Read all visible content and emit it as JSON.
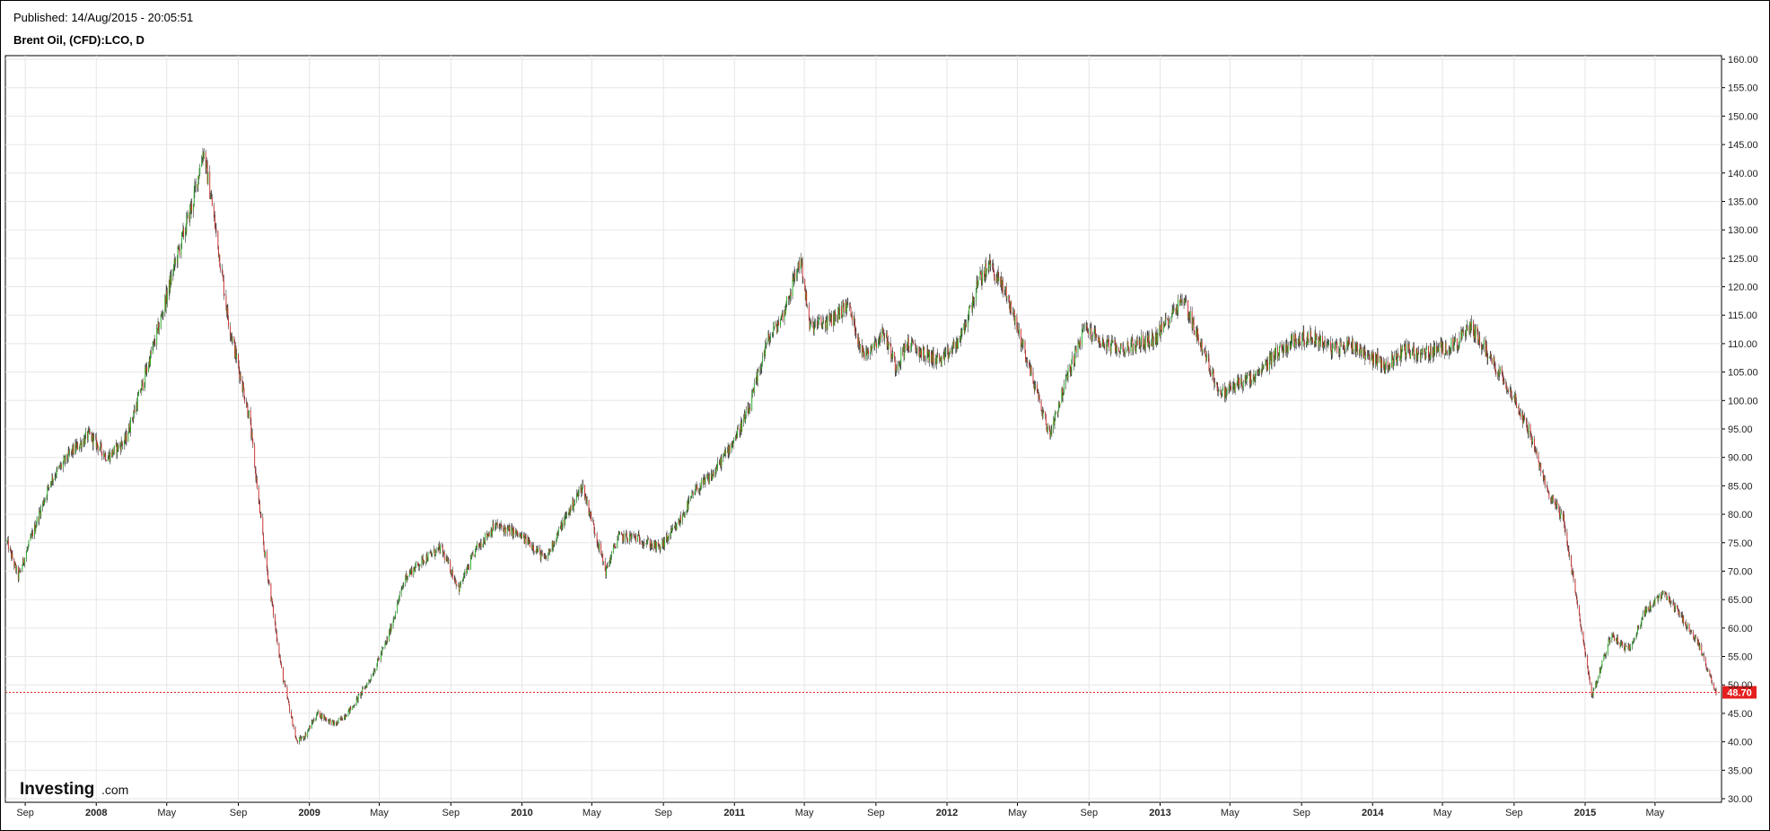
{
  "header": {
    "published": "Published: 14/Aug/2015 - 20:05:51",
    "title": "Brent Oil, (CFD):LCO, D"
  },
  "branding": {
    "logo_main": "Investing",
    "logo_suffix": ".com"
  },
  "colors": {
    "up": "#22b322",
    "down": "#d22a2a",
    "wick": "#333333",
    "grid": "#e6e6e6",
    "last_price": "#e51e1e"
  },
  "chart_data": {
    "type": "candlestick",
    "title": "Brent Oil, (CFD):LCO, D",
    "ylim": [
      30,
      160
    ],
    "y_ticks": [
      30,
      35,
      40,
      45,
      50,
      55,
      60,
      65,
      70,
      75,
      80,
      85,
      90,
      95,
      100,
      105,
      110,
      115,
      120,
      125,
      130,
      135,
      140,
      145,
      150,
      155,
      160
    ],
    "y_tick_labels": [
      "30.00",
      "35.00",
      "40.00",
      "45.00",
      "50.00",
      "55.00",
      "60.00",
      "65.00",
      "70.00",
      "75.00",
      "80.00",
      "85.00",
      "90.00",
      "95.00",
      "100.00",
      "105.00",
      "110.00",
      "115.00",
      "120.00",
      "125.00",
      "130.00",
      "135.00",
      "140.00",
      "145.00",
      "150.00",
      "155.00",
      "160.00"
    ],
    "x_range": [
      "2007-08-01",
      "2015-08-14"
    ],
    "x_ticks": [
      {
        "date": "2007-09-01",
        "label": "Sep",
        "bold": false
      },
      {
        "date": "2008-01-01",
        "label": "2008",
        "bold": true
      },
      {
        "date": "2008-05-01",
        "label": "May",
        "bold": false
      },
      {
        "date": "2008-09-01",
        "label": "Sep",
        "bold": false
      },
      {
        "date": "2009-01-01",
        "label": "2009",
        "bold": true
      },
      {
        "date": "2009-05-01",
        "label": "May",
        "bold": false
      },
      {
        "date": "2009-09-01",
        "label": "Sep",
        "bold": false
      },
      {
        "date": "2010-01-01",
        "label": "2010",
        "bold": true
      },
      {
        "date": "2010-05-01",
        "label": "May",
        "bold": false
      },
      {
        "date": "2010-09-01",
        "label": "Sep",
        "bold": false
      },
      {
        "date": "2011-01-01",
        "label": "2011",
        "bold": true
      },
      {
        "date": "2011-05-01",
        "label": "May",
        "bold": false
      },
      {
        "date": "2011-09-01",
        "label": "Sep",
        "bold": false
      },
      {
        "date": "2012-01-01",
        "label": "2012",
        "bold": true
      },
      {
        "date": "2012-05-01",
        "label": "May",
        "bold": false
      },
      {
        "date": "2012-09-01",
        "label": "Sep",
        "bold": false
      },
      {
        "date": "2013-01-01",
        "label": "2013",
        "bold": true
      },
      {
        "date": "2013-05-01",
        "label": "May",
        "bold": false
      },
      {
        "date": "2013-09-01",
        "label": "Sep",
        "bold": false
      },
      {
        "date": "2014-01-01",
        "label": "2014",
        "bold": true
      },
      {
        "date": "2014-05-01",
        "label": "May",
        "bold": false
      },
      {
        "date": "2014-09-01",
        "label": "Sep",
        "bold": false
      },
      {
        "date": "2015-01-01",
        "label": "2015",
        "bold": true
      },
      {
        "date": "2015-05-01",
        "label": "May",
        "bold": false
      }
    ],
    "grid": true,
    "last_price": 48.7,
    "last_price_label": "48.70",
    "series": [
      {
        "x": [
          "2007-08-01",
          "2007-08-20",
          "2007-09-15",
          "2007-10-15",
          "2007-11-20",
          "2007-12-20",
          "2008-01-20",
          "2008-02-20",
          "2008-03-15",
          "2008-04-15",
          "2008-05-15",
          "2008-06-15",
          "2008-07-03",
          "2008-07-20",
          "2008-08-15",
          "2008-09-20",
          "2008-10-15",
          "2008-11-15",
          "2008-12-10",
          "2008-12-24",
          "2009-01-15",
          "2009-02-15",
          "2009-03-15",
          "2009-04-15",
          "2009-05-15",
          "2009-06-15",
          "2009-07-15",
          "2009-08-15",
          "2009-09-15",
          "2009-10-15",
          "2009-11-15",
          "2009-12-15",
          "2010-01-15",
          "2010-02-10",
          "2010-03-15",
          "2010-04-15",
          "2010-05-25",
          "2010-06-15",
          "2010-07-15",
          "2010-08-25",
          "2010-09-25",
          "2010-10-25",
          "2010-11-25",
          "2010-12-25",
          "2011-01-25",
          "2011-02-25",
          "2011-03-25",
          "2011-04-25",
          "2011-05-10",
          "2011-06-15",
          "2011-07-15",
          "2011-08-10",
          "2011-09-15",
          "2011-10-05",
          "2011-10-25",
          "2011-11-25",
          "2011-12-25",
          "2012-01-25",
          "2012-02-25",
          "2012-03-15",
          "2012-04-15",
          "2012-05-15",
          "2012-06-25",
          "2012-07-25",
          "2012-08-25",
          "2012-09-25",
          "2012-10-25",
          "2012-11-25",
          "2012-12-25",
          "2013-01-25",
          "2013-02-10",
          "2013-03-15",
          "2013-04-15",
          "2013-05-15",
          "2013-06-15",
          "2013-07-15",
          "2013-08-25",
          "2013-09-25",
          "2013-10-25",
          "2013-11-25",
          "2013-12-25",
          "2014-01-25",
          "2014-02-25",
          "2014-03-25",
          "2014-04-25",
          "2014-05-25",
          "2014-06-20",
          "2014-07-25",
          "2014-08-25",
          "2014-09-25",
          "2014-10-25",
          "2014-11-25",
          "2014-12-25",
          "2015-01-13",
          "2015-02-15",
          "2015-03-15",
          "2015-04-15",
          "2015-05-15",
          "2015-06-15",
          "2015-07-15",
          "2015-08-14"
        ],
        "close": [
          75,
          69,
          77,
          86,
          91,
          94,
          90,
          93,
          101,
          112,
          124,
          135,
          144,
          133,
          114,
          97,
          74,
          52,
          40,
          41,
          45,
          43,
          46,
          51,
          58,
          69,
          72,
          74,
          67,
          74,
          78,
          77,
          75,
          72,
          79,
          85,
          70,
          76,
          76,
          74,
          78,
          84,
          87,
          92,
          98,
          110,
          115,
          125,
          113,
          114,
          117,
          108,
          112,
          106,
          110,
          108,
          107,
          111,
          121,
          124,
          118,
          108,
          94,
          104,
          113,
          110,
          109,
          110,
          111,
          116,
          118,
          109,
          101,
          103,
          104,
          108,
          111,
          111,
          109,
          110,
          108,
          106,
          109,
          108,
          109,
          110,
          113,
          107,
          102,
          95,
          85,
          79,
          60,
          48,
          59,
          56,
          63,
          66,
          62,
          57,
          48.7
        ]
      }
    ]
  }
}
